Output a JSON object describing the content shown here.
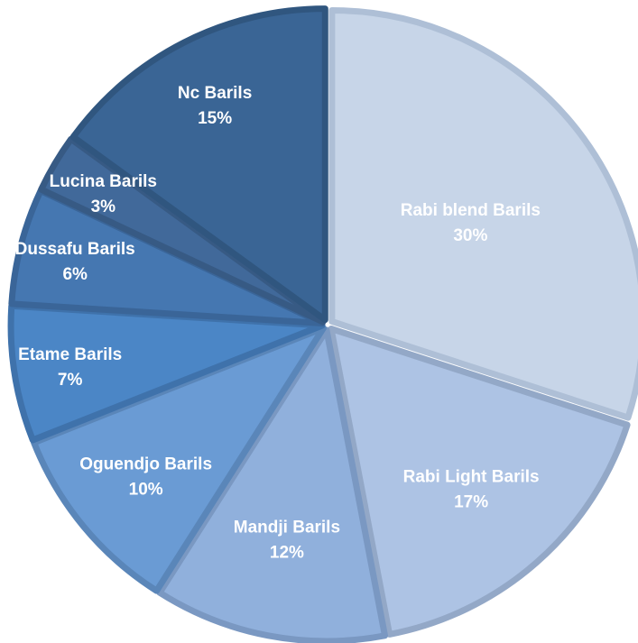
{
  "chart_data": {
    "type": "pie",
    "title": "",
    "slices": [
      {
        "name": "Rabi blend Barils",
        "value": 30,
        "label": "30%",
        "color": "#c7d5e8",
        "edge": "#aebfd6"
      },
      {
        "name": "Rabi Light Barils",
        "value": 17,
        "label": "17%",
        "color": "#adc3e4",
        "edge": "#93a8c7"
      },
      {
        "name": "Mandji Barils",
        "value": 12,
        "label": "12%",
        "color": "#90b0dc",
        "edge": "#7a98c2"
      },
      {
        "name": "Oguendjo Barils",
        "value": 10,
        "label": "10%",
        "color": "#6a9bd4",
        "edge": "#5a86b9"
      },
      {
        "name": "Etame Barils",
        "value": 7,
        "label": "7%",
        "color": "#4b86c6",
        "edge": "#3f72ab"
      },
      {
        "name": "Dussafu Barils",
        "value": 6,
        "label": "6%",
        "color": "#4577b1",
        "edge": "#3a6598"
      },
      {
        "name": "Lucina Barils",
        "value": 3,
        "label": "3%",
        "color": "#41699a",
        "edge": "#375a84"
      },
      {
        "name": "Nc Barils",
        "value": 15,
        "label": "15%",
        "color": "#3a6595",
        "edge": "#30567f"
      }
    ],
    "start_angle_deg": 0,
    "direction": "clockwise",
    "legend": "none",
    "data_labels": "inside"
  }
}
